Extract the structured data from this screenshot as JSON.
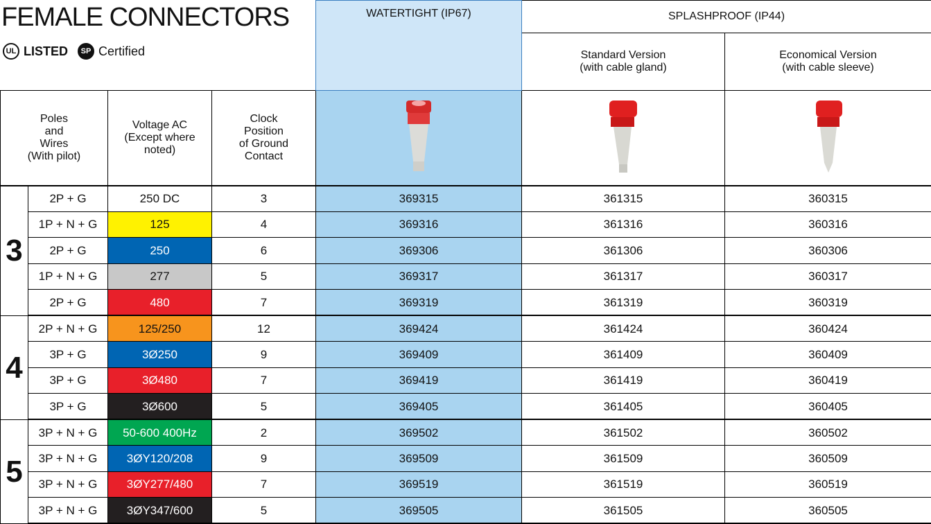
{
  "header": {
    "title": "FEMALE CONNECTORS",
    "ul_logo": "UL",
    "listed": "LISTED",
    "csa_logo": "SP",
    "certified": "Certified"
  },
  "columns": {
    "watertight": "WATERTIGHT (IP67)",
    "splashproof": "SPLASHPROOF (IP44)",
    "standard": [
      "Standard Version",
      "(with cable gland)"
    ],
    "economical": [
      "Economical Version",
      "(with cable sleeve)"
    ],
    "poles": [
      "Poles",
      "and",
      "Wires",
      "(With pilot)"
    ],
    "voltage": [
      "Voltage AC",
      "(Except where",
      "noted)"
    ],
    "clock": [
      "Clock",
      "Position",
      "of Ground",
      "Contact"
    ]
  },
  "table": {
    "groups": [
      {
        "label": "3",
        "rows": [
          {
            "poles": "2P + G",
            "voltage": "250 DC",
            "color": "#ffffff",
            "clock": "3",
            "watertight": "369315",
            "standard": "361315",
            "economical": "360315"
          },
          {
            "poles": "1P + N + G",
            "voltage": "125",
            "color": "#fff200",
            "clock": "4",
            "watertight": "369316",
            "standard": "361316",
            "economical": "360316"
          },
          {
            "poles": "2P + G",
            "voltage": "250",
            "color": "#0065b3",
            "clock": "6",
            "watertight": "369306",
            "standard": "361306",
            "economical": "360306"
          },
          {
            "poles": "1P + N + G",
            "voltage": "277",
            "color": "#c8c8c8",
            "clock": "5",
            "watertight": "369317",
            "standard": "361317",
            "economical": "360317"
          },
          {
            "poles": "2P + G",
            "voltage": "480",
            "color": "#e8202a",
            "clock": "7",
            "watertight": "369319",
            "standard": "361319",
            "economical": "360319"
          }
        ]
      },
      {
        "label": "4",
        "rows": [
          {
            "poles": "2P + N + G",
            "voltage": "125/250",
            "color": "#f7941d",
            "clock": "12",
            "watertight": "369424",
            "standard": "361424",
            "economical": "360424"
          },
          {
            "poles": "3P + G",
            "voltage": "3Ø250",
            "color": "#0065b3",
            "clock": "9",
            "watertight": "369409",
            "standard": "361409",
            "economical": "360409"
          },
          {
            "poles": "3P + G",
            "voltage": "3Ø480",
            "color": "#e8202a",
            "clock": "7",
            "watertight": "369419",
            "standard": "361419",
            "economical": "360419"
          },
          {
            "poles": "3P + G",
            "voltage": "3Ø600",
            "color": "#231f20",
            "clock": "5",
            "watertight": "369405",
            "standard": "361405",
            "economical": "360405"
          }
        ]
      },
      {
        "label": "5",
        "rows": [
          {
            "poles": "3P + N + G",
            "voltage": "50-600 400Hz",
            "color": "#00a651",
            "clock": "2",
            "watertight": "369502",
            "standard": "361502",
            "economical": "360502"
          },
          {
            "poles": "3P + N + G",
            "voltage": "3ØY120/208",
            "color": "#0065b3",
            "clock": "9",
            "watertight": "369509",
            "standard": "361509",
            "economical": "360509"
          },
          {
            "poles": "3P + N + G",
            "voltage": "3ØY277/480",
            "color": "#e8202a",
            "clock": "7",
            "watertight": "369519",
            "standard": "361519",
            "economical": "360519"
          },
          {
            "poles": "3P + N + G",
            "voltage": "3ØY347/600",
            "color": "#231f20",
            "clock": "5",
            "watertight": "369505",
            "standard": "361505",
            "economical": "360505"
          }
        ]
      }
    ]
  }
}
